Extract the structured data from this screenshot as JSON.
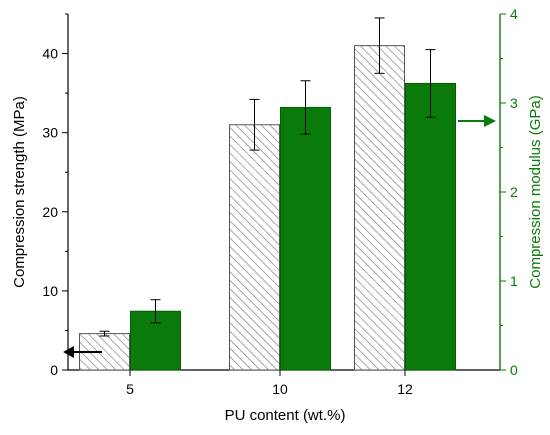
{
  "chart_data": {
    "type": "bar",
    "title": "",
    "categories": [
      "5",
      "10",
      "12"
    ],
    "xlabel": "PU content (wt.%)",
    "ylabel": "Compression strength (MPa)",
    "ylabel_right": "Compression modulus (GPa)",
    "ylim": [
      0,
      45
    ],
    "ylim_right": [
      0,
      4
    ],
    "yticks": [
      "0",
      "10",
      "20",
      "30",
      "40"
    ],
    "yticks_right": [
      "0",
      "1",
      "2",
      "3",
      "4"
    ],
    "legend": "none",
    "grid": false,
    "series": [
      {
        "axis": "left",
        "pattern": "hatched",
        "color": "#777777",
        "values": [
          4.6,
          31.0,
          41.0
        ],
        "errors": [
          0.3,
          3.2,
          3.5
        ]
      },
      {
        "axis": "right",
        "pattern": "solid",
        "color": "#0a7a0a",
        "values": [
          0.66,
          2.95,
          3.22
        ],
        "errors": [
          0.13,
          0.3,
          0.38
        ]
      }
    ],
    "annotations": [
      {
        "type": "arrow",
        "direction": "left",
        "points_to": "left-axis",
        "color": "#000000"
      },
      {
        "type": "arrow",
        "direction": "right",
        "points_to": "right-axis",
        "color": "#0a7a0a"
      }
    ]
  }
}
